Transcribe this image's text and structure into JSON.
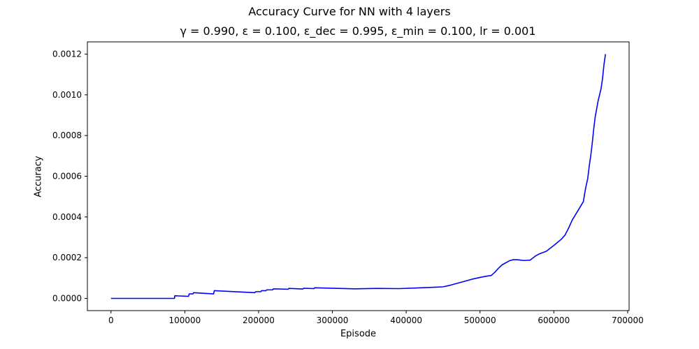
{
  "chart_data": {
    "type": "line",
    "title": "Accuracy Curve for NN with 4 layers",
    "subtitle": "γ = 0.990, ε = 0.100, ε_dec = 0.995, ε_min = 0.100, lr = 0.001",
    "xlabel": "Episode",
    "ylabel": "Accuracy",
    "xlim": [
      -32000,
      702000
    ],
    "ylim": [
      -6e-05,
      0.00126
    ],
    "xticks": [
      0,
      100000,
      200000,
      300000,
      400000,
      500000,
      600000,
      700000
    ],
    "xtick_labels": [
      "0",
      "100000",
      "200000",
      "300000",
      "400000",
      "500000",
      "600000",
      "700000"
    ],
    "yticks": [
      0.0,
      0.0002,
      0.0004,
      0.0006,
      0.0008,
      0.001,
      0.0012
    ],
    "ytick_labels": [
      "0.0000",
      "0.0002",
      "0.0004",
      "0.0006",
      "0.0008",
      "0.0010",
      "0.0012"
    ],
    "grid": false,
    "legend": "none",
    "series": [
      {
        "color": "#0000ff",
        "x": [
          0,
          86000,
          86500,
          105000,
          106000,
          111000,
          112000,
          139000,
          140000,
          195000,
          196000,
          203000,
          204000,
          210000,
          211000,
          219000,
          220000,
          240000,
          241000,
          260000,
          261000,
          275000,
          276000,
          300000,
          330000,
          360000,
          390000,
          420000,
          440000,
          450000,
          460000,
          470000,
          480000,
          490000,
          500000,
          510000,
          515000,
          520000,
          525000,
          530000,
          535000,
          540000,
          545000,
          550000,
          560000,
          568000,
          575000,
          580000,
          590000,
          600000,
          605000,
          610000,
          615000,
          620000,
          625000,
          630000,
          635000,
          640000,
          643000,
          646000,
          648000,
          650000,
          652000,
          654000,
          656000,
          658000,
          660000,
          662000,
          664000,
          666000,
          668000,
          670000
        ],
        "y": [
          0.0,
          0.0,
          1.3e-05,
          1e-05,
          2.2e-05,
          2.2e-05,
          2.8e-05,
          2.2e-05,
          3.8e-05,
          2.8e-05,
          3.3e-05,
          3.3e-05,
          3.8e-05,
          3.8e-05,
          4.2e-05,
          4.2e-05,
          4.7e-05,
          4.5e-05,
          4.9e-05,
          4.6e-05,
          5e-05,
          4.8e-05,
          5.2e-05,
          5e-05,
          4.7e-05,
          4.9e-05,
          4.8e-05,
          5.2e-05,
          5.5e-05,
          5.7e-05,
          6.5e-05,
          7.5e-05,
          8.5e-05,
          9.5e-05,
          0.000103,
          0.00011,
          0.000112,
          0.000128,
          0.000148,
          0.000165,
          0.000175,
          0.000185,
          0.00019,
          0.00019,
          0.000186,
          0.000188,
          0.000208,
          0.000218,
          0.000232,
          0.00026,
          0.000275,
          0.00029,
          0.00031,
          0.000345,
          0.000385,
          0.000415,
          0.000445,
          0.000475,
          0.00054,
          0.00059,
          0.00065,
          0.0007,
          0.00076,
          0.00083,
          0.00089,
          0.00093,
          0.00097,
          0.001,
          0.00103,
          0.00108,
          0.00115,
          0.0012
        ]
      }
    ]
  }
}
